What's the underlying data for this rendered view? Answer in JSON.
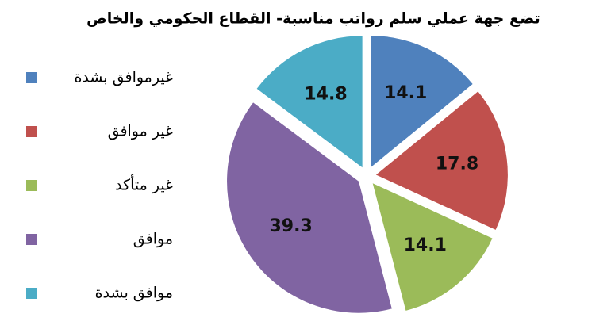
{
  "chart_data": {
    "type": "pie",
    "title": "تضع جهة عملي سلم رواتب مناسبة- القطاع الحكومي والخاص",
    "categories": [
      "غيرموافق بشدة",
      "غير موافق",
      "غير متأكد",
      "موافق",
      "موافق بشدة"
    ],
    "values": [
      14.1,
      17.8,
      14.1,
      39.3,
      14.8
    ],
    "colors": [
      "#4f81bd",
      "#c0504d",
      "#9bbb59",
      "#8064a2",
      "#4bacc6"
    ],
    "legend": "left"
  }
}
